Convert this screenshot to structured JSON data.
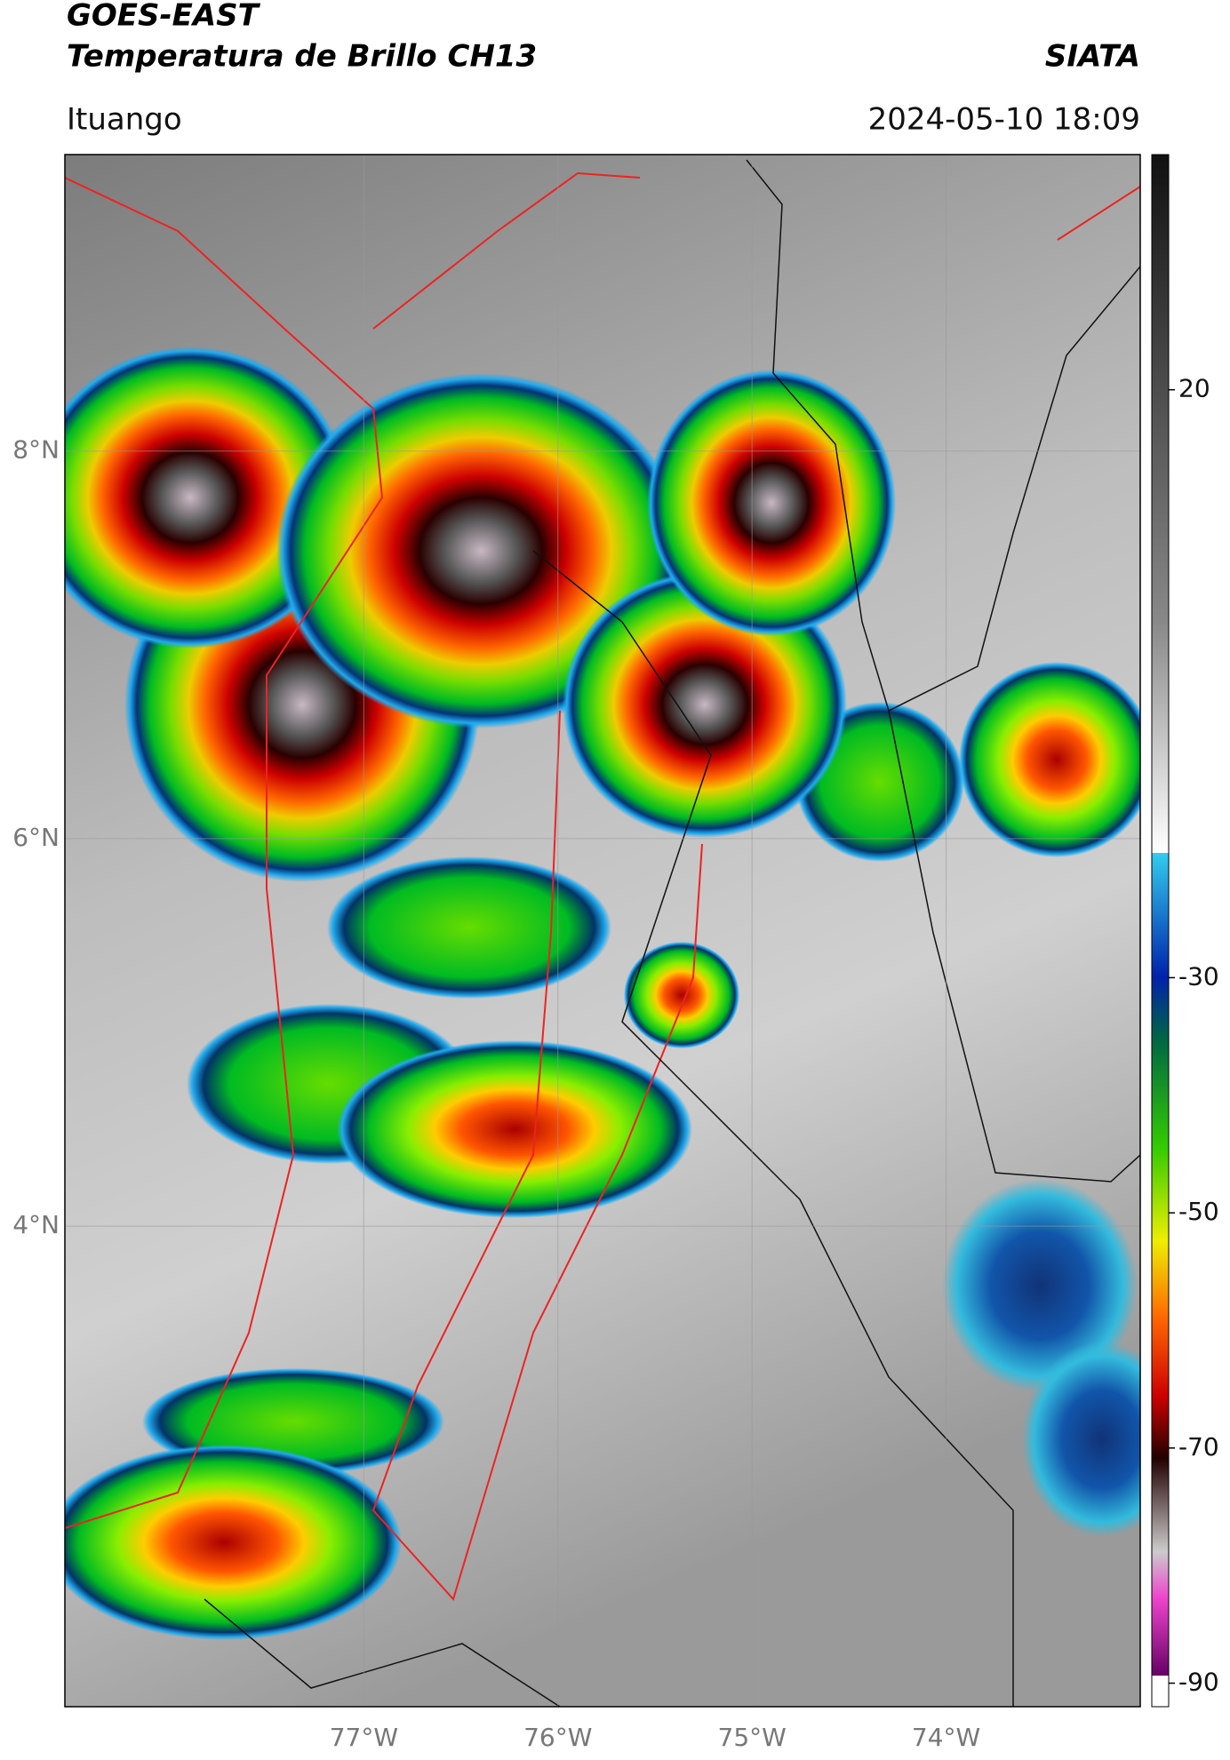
{
  "header": {
    "title_line1": "GOES-EAST",
    "title_line2": "Temperatura de Brillo CH13",
    "source": "SIATA",
    "location": "Ituango",
    "datetime": "2024-05-10 18:09"
  },
  "map": {
    "xlim": [
      -78.54,
      -73.0
    ],
    "ylim": [
      1.52,
      9.53
    ],
    "xticks": [
      {
        "value": -77,
        "label": "77°W"
      },
      {
        "value": -76,
        "label": "76°W"
      },
      {
        "value": -75,
        "label": "75°W"
      },
      {
        "value": -74,
        "label": "74°W"
      }
    ],
    "yticks": [
      {
        "value": 8,
        "label": "8°N"
      },
      {
        "value": 6,
        "label": "6°N"
      },
      {
        "value": 4,
        "label": "4°N"
      }
    ]
  },
  "colorbar": {
    "lim": [
      -92,
      40
    ],
    "ticks": [
      20,
      -30,
      -50,
      -70,
      -90
    ]
  }
}
